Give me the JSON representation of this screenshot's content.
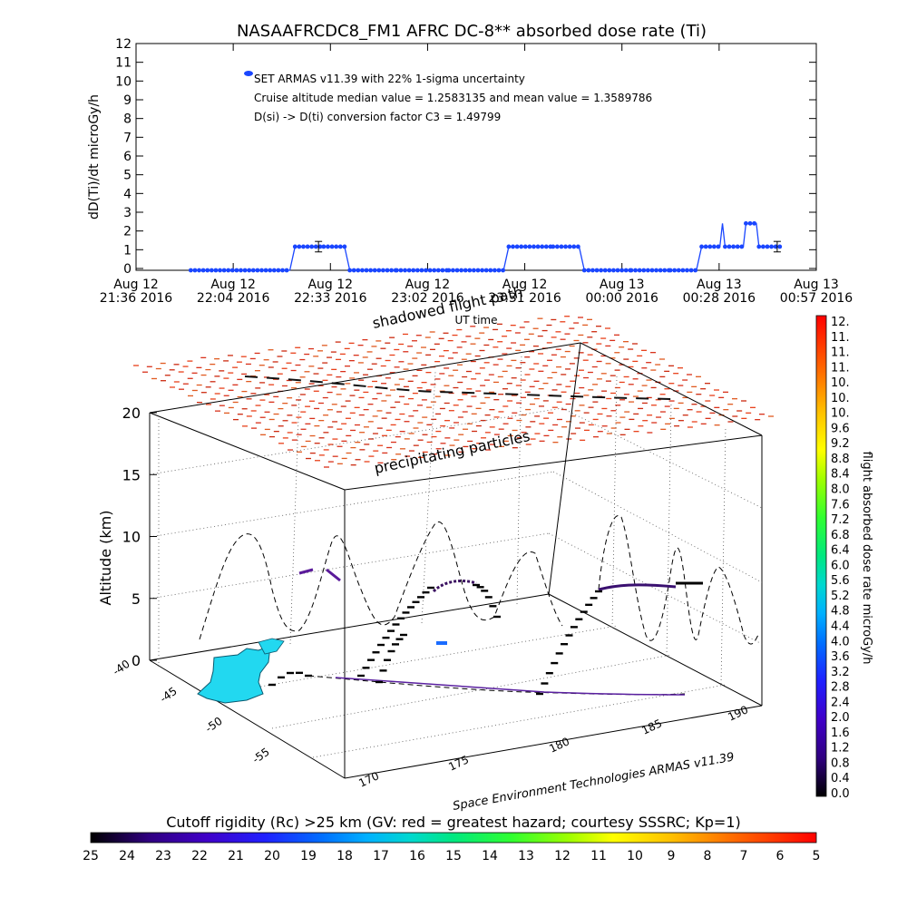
{
  "chart_data": [
    {
      "type": "line",
      "title": "NASAAFRCDC8_FM1 AFRC DC-8** absorbed dose rate (Ti)",
      "ylabel": "dD(Ti)/dt microGy/h",
      "xlabel": "UT time",
      "ylim": [
        0,
        12
      ],
      "yticks": [
        "0",
        "1",
        "2",
        "3",
        "4",
        "5",
        "6",
        "7",
        "8",
        "9",
        "10",
        "11",
        "12"
      ],
      "xticks": [
        {
          "line1": "Aug 12",
          "line2": "21:36 2016"
        },
        {
          "line1": "Aug 12",
          "line2": "22:04 2016"
        },
        {
          "line1": "Aug 12",
          "line2": "22:33 2016"
        },
        {
          "line1": "Aug 12",
          "line2": "23:02 2016"
        },
        {
          "line1": "Aug 12",
          "line2": "23:31 2016"
        },
        {
          "line1": "Aug 13",
          "line2": "00:00 2016"
        },
        {
          "line1": "Aug 13",
          "line2": "00:28 2016"
        },
        {
          "line1": "Aug 13",
          "line2": "00:57 2016"
        }
      ],
      "legend": {
        "label": "SET ARMAS v11.39 with 22% 1-sigma uncertainty",
        "notes": [
          "Cruise altitude median value = 1.2583135 and mean value = 1.3589786",
          "D(si) -> D(ti) conversion factor C3 = 1.49799"
        ],
        "placement": "top-left"
      },
      "x_unit": "minutes after Aug 12 21:36 2016",
      "series": [
        {
          "name": "SET ARMAS v11.39",
          "color": "#1a46ff",
          "points": [
            [
              21,
              0
            ],
            [
              45,
              0
            ],
            [
              59,
              0
            ],
            [
              61,
              1.26
            ],
            [
              72,
              1.26
            ],
            [
              80,
              1.26
            ],
            [
              82,
              0
            ],
            [
              100,
              0
            ],
            [
              120,
              0
            ],
            [
              141,
              0
            ],
            [
              143,
              1.26
            ],
            [
              160,
              1.26
            ],
            [
              170,
              1.26
            ],
            [
              172,
              0
            ],
            [
              190,
              0
            ],
            [
              205,
              0
            ],
            [
              215,
              0
            ],
            [
              217,
              1.26
            ],
            [
              224,
              1.26
            ],
            [
              225,
              2.5
            ],
            [
              226,
              1.26
            ],
            [
              233,
              1.26
            ],
            [
              234,
              2.5
            ],
            [
              238,
              2.5
            ],
            [
              239,
              1.26
            ],
            [
              247,
              1.26
            ]
          ],
          "error_bars": [
            {
              "x": 70,
              "y": 1.26,
              "err": 0.28
            },
            {
              "x": 246,
              "y": 1.26,
              "err": 0.28
            }
          ]
        }
      ]
    },
    {
      "type": "surface3d",
      "zlabel": "Altitude (km)",
      "zticks": [
        "0",
        "5",
        "10",
        "15",
        "20"
      ],
      "lat_ticks": [
        "-40",
        "-45",
        "-50",
        "-55"
      ],
      "lon_ticks": [
        "170",
        "175",
        "180",
        "185",
        "190"
      ],
      "annotations": [
        "shadowed flight path",
        "precipitating particles"
      ],
      "footer": "Space Environment Technologies ARMAS v11.39",
      "notes": "Flight track as dashed line with dose-rate colored segments; red layer of precipitating particles near 20 km; cyan cutoff rigidity contour region near -45 lat."
    },
    {
      "type": "colorbar",
      "label": "flight absorbed dose rate microGy/h",
      "ticks": [
        "12.",
        "11.",
        "11.",
        "11.",
        "10.",
        "10.",
        "10.",
        "9.6",
        "9.2",
        "8.8",
        "8.4",
        "8.0",
        "7.6",
        "7.2",
        "6.8",
        "6.4",
        "6.0",
        "5.6",
        "5.2",
        "4.8",
        "4.4",
        "4.0",
        "3.6",
        "3.2",
        "2.8",
        "2.4",
        "2.0",
        "1.6",
        "1.2",
        "0.8",
        "0.4",
        "0.0"
      ],
      "colors": [
        "#ff0000",
        "#ff2a00",
        "#ff5500",
        "#ff8000",
        "#ffaa00",
        "#ffd400",
        "#ffff00",
        "#c8ff00",
        "#80ff00",
        "#30ff30",
        "#00e880",
        "#00d8c8",
        "#00a8ff",
        "#0060ff",
        "#2020ff",
        "#4000c8",
        "#300080",
        "#000000"
      ]
    },
    {
      "type": "colorbar",
      "label": "Cutoff rigidity (Rc) >25 km (GV: red = greatest hazard; courtesy SSSRC; Kp=1)",
      "ticks": [
        "25",
        "24",
        "23",
        "22",
        "21",
        "20",
        "19",
        "18",
        "17",
        "16",
        "15",
        "14",
        "13",
        "12",
        "11",
        "10",
        "9",
        "8",
        "7",
        "6",
        "5"
      ],
      "colors": [
        "#000000",
        "#300080",
        "#4000c8",
        "#2020ff",
        "#0060ff",
        "#00a8ff",
        "#00d8c8",
        "#00e880",
        "#30ff30",
        "#80ff00",
        "#c8ff00",
        "#ffff00",
        "#ffd400",
        "#ffaa00",
        "#ff8000",
        "#ff5500",
        "#ff2a00",
        "#ff0000"
      ]
    }
  ]
}
